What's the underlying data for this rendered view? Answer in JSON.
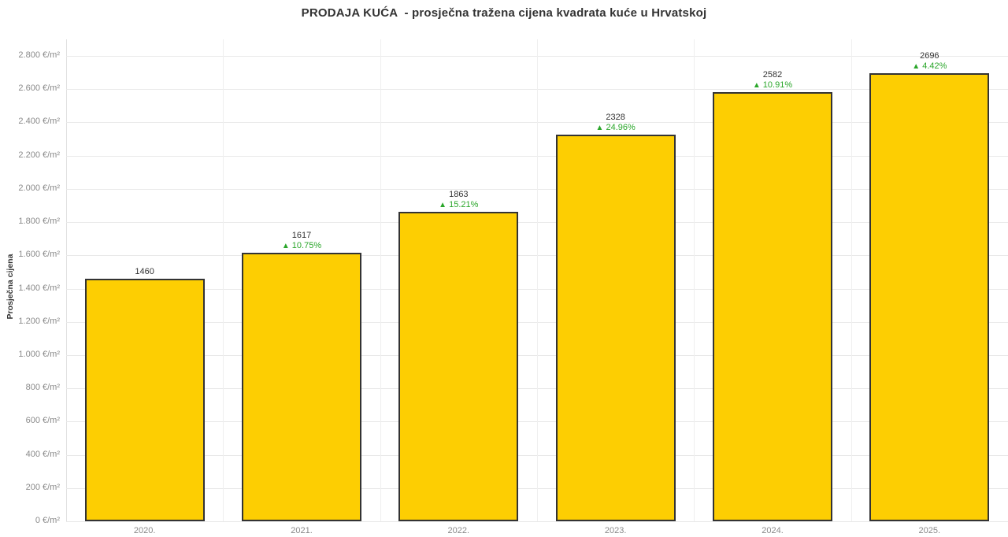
{
  "chart_data": {
    "type": "bar",
    "title": "PRODAJA KUĆA  - prosječna tražena cijena kvadrata kuće u Hrvatskoj",
    "xlabel": "",
    "ylabel": "Prosječna cijena",
    "categories": [
      "2020.",
      "2021.",
      "2022.",
      "2023.",
      "2024.",
      "2025."
    ],
    "values": [
      1460,
      1617,
      1863,
      2328,
      2582,
      2696
    ],
    "pct_change": [
      null,
      "10.75%",
      "15.21%",
      "24.96%",
      "10.91%",
      "4.42%"
    ],
    "pct_arrow": "▲",
    "ylim": [
      0,
      2800
    ],
    "ytick_step": 200,
    "ytick_unit": "€/m²",
    "ytick_labels": [
      "0 €/m²",
      "200 €/m²",
      "400 €/m²",
      "600 €/m²",
      "800 €/m²",
      "1.000 €/m²",
      "1.200 €/m²",
      "1.400 €/m²",
      "1.600 €/m²",
      "1.800 €/m²",
      "2.000 €/m²",
      "2.200 €/m²",
      "2.400 €/m²",
      "2.600 €/m²",
      "2.800 €/m²"
    ],
    "grid": "horizontal gridlines + vertical band separators",
    "legend": "none",
    "colors": {
      "bar_fill": "#fdce02",
      "bar_border": "#333333",
      "positive_change_green": "#2aa62a",
      "value_label": "#333333",
      "axis_tick_label": "#8a8a8a",
      "gridline": "#e9e9e9",
      "title": "#333333"
    }
  }
}
